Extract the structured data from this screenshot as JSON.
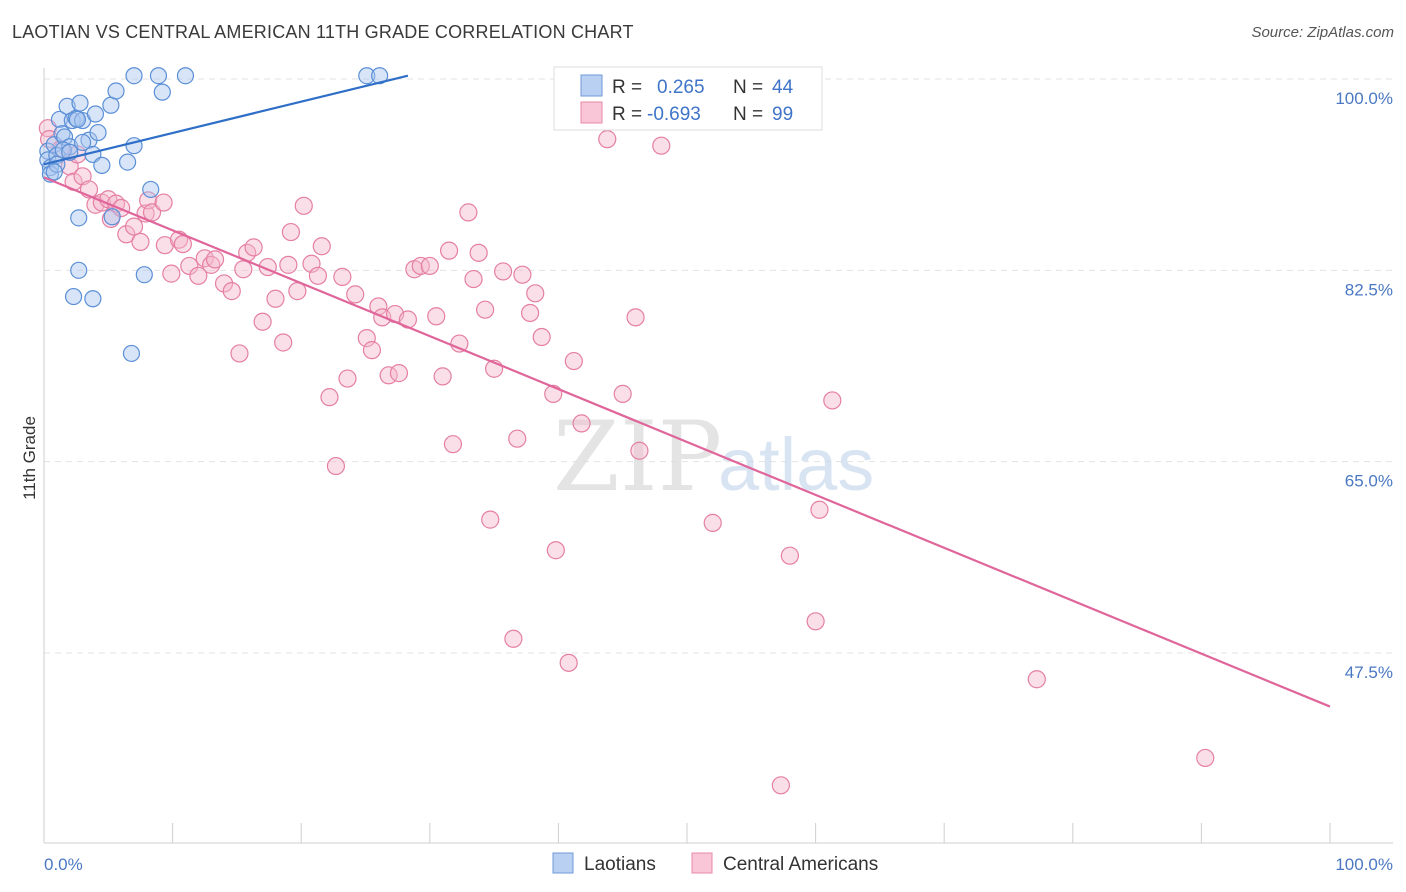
{
  "header": {
    "title": "LAOTIAN VS CENTRAL AMERICAN 11TH GRADE CORRELATION CHART",
    "source": "Source: ZipAtlas.com"
  },
  "watermark": {
    "zip": "ZIP",
    "atlas": "atlas"
  },
  "colors": {
    "blue": "#5b8fd6",
    "blue_fill": "#a9c6ef",
    "blue_line": "#2f6fc7",
    "pink": "#e57fa3",
    "pink_fill": "#f5b8cc",
    "pink_line": "#e0659a",
    "tick_text": "#4a78c2"
  },
  "legend": {
    "r_label": "R =",
    "n_label": "N =",
    "laotian": {
      "r": "0.265",
      "n": "44"
    },
    "central": {
      "r": "-0.693",
      "n": "99"
    }
  },
  "chart_data": {
    "type": "scatter",
    "title": "LAOTIAN VS CENTRAL AMERICAN 11TH GRADE CORRELATION CHART",
    "xlabel": "",
    "ylabel": "11th Grade",
    "xlim": [
      0,
      100
    ],
    "ylim": [
      30,
      101
    ],
    "x_tick_labels": [
      "0.0%",
      "100.0%"
    ],
    "y_ticks": [
      {
        "value": 100.0,
        "label": "100.0%"
      },
      {
        "value": 82.5,
        "label": "82.5%"
      },
      {
        "value": 65.0,
        "label": "65.0%"
      },
      {
        "value": 47.5,
        "label": "47.5%"
      }
    ],
    "series": [
      {
        "name": "Laotians",
        "color": "blue",
        "points": [
          [
            0.3,
            93.4
          ],
          [
            0.3,
            92.6
          ],
          [
            0.5,
            91.9
          ],
          [
            0.5,
            91.3
          ],
          [
            0.8,
            94.0
          ],
          [
            1.0,
            93.0
          ],
          [
            1.2,
            96.3
          ],
          [
            1.4,
            95.0
          ],
          [
            1.6,
            94.7
          ],
          [
            1.8,
            97.5
          ],
          [
            2.0,
            93.8
          ],
          [
            2.2,
            96.2
          ],
          [
            2.5,
            96.4
          ],
          [
            2.8,
            97.8
          ],
          [
            3.0,
            96.2
          ],
          [
            3.5,
            94.4
          ],
          [
            3.8,
            93.1
          ],
          [
            4.0,
            96.8
          ],
          [
            4.2,
            95.1
          ],
          [
            5.2,
            97.6
          ],
          [
            5.6,
            98.9
          ],
          [
            6.5,
            92.4
          ],
          [
            4.5,
            92.1
          ],
          [
            2.7,
            87.3
          ],
          [
            5.3,
            87.4
          ],
          [
            8.3,
            89.9
          ],
          [
            7.0,
            93.9
          ],
          [
            7.0,
            100.3
          ],
          [
            8.9,
            100.3
          ],
          [
            9.2,
            98.8
          ],
          [
            11.0,
            100.3
          ],
          [
            25.1,
            100.3
          ],
          [
            26.1,
            100.3
          ],
          [
            2.7,
            82.5
          ],
          [
            7.8,
            82.1
          ],
          [
            2.3,
            80.1
          ],
          [
            3.8,
            79.9
          ],
          [
            6.8,
            74.9
          ],
          [
            1.5,
            93.5
          ],
          [
            1.0,
            92.2
          ],
          [
            2.0,
            93.3
          ],
          [
            2.6,
            96.3
          ],
          [
            0.8,
            91.5
          ],
          [
            3.0,
            94.2
          ]
        ],
        "trend": {
          "x": [
            0.0,
            28.3
          ],
          "y": [
            92.2,
            100.3
          ]
        }
      },
      {
        "name": "Central Americans",
        "color": "pink",
        "points": [
          [
            0.3,
            95.5
          ],
          [
            0.4,
            94.5
          ],
          [
            1.3,
            93.6
          ],
          [
            2.0,
            92.0
          ],
          [
            2.3,
            90.6
          ],
          [
            2.6,
            93.1
          ],
          [
            3.0,
            91.1
          ],
          [
            3.5,
            89.9
          ],
          [
            4.0,
            88.5
          ],
          [
            4.5,
            88.7
          ],
          [
            5.0,
            89.0
          ],
          [
            5.2,
            87.2
          ],
          [
            5.6,
            88.6
          ],
          [
            6.0,
            88.2
          ],
          [
            6.4,
            85.8
          ],
          [
            7.0,
            86.5
          ],
          [
            7.5,
            85.1
          ],
          [
            7.9,
            87.7
          ],
          [
            8.1,
            88.9
          ],
          [
            8.4,
            87.8
          ],
          [
            9.3,
            88.7
          ],
          [
            9.4,
            84.8
          ],
          [
            9.9,
            82.2
          ],
          [
            10.5,
            85.3
          ],
          [
            10.8,
            84.9
          ],
          [
            11.3,
            82.9
          ],
          [
            12.0,
            82.0
          ],
          [
            12.5,
            83.6
          ],
          [
            13.0,
            83.0
          ],
          [
            13.3,
            83.5
          ],
          [
            14.0,
            81.3
          ],
          [
            14.6,
            80.6
          ],
          [
            15.2,
            74.9
          ],
          [
            15.5,
            82.6
          ],
          [
            15.8,
            84.1
          ],
          [
            16.3,
            84.6
          ],
          [
            17.0,
            77.8
          ],
          [
            17.4,
            82.8
          ],
          [
            18.0,
            79.9
          ],
          [
            18.6,
            75.9
          ],
          [
            19.0,
            83.0
          ],
          [
            19.2,
            86.0
          ],
          [
            19.7,
            80.6
          ],
          [
            20.2,
            88.4
          ],
          [
            20.8,
            83.1
          ],
          [
            21.3,
            82.0
          ],
          [
            21.6,
            84.7
          ],
          [
            22.2,
            70.9
          ],
          [
            22.7,
            64.6
          ],
          [
            23.2,
            81.9
          ],
          [
            23.6,
            72.6
          ],
          [
            24.2,
            80.3
          ],
          [
            25.1,
            76.3
          ],
          [
            25.5,
            75.2
          ],
          [
            26.0,
            79.2
          ],
          [
            26.3,
            78.2
          ],
          [
            26.8,
            72.9
          ],
          [
            27.3,
            78.5
          ],
          [
            27.6,
            73.1
          ],
          [
            28.3,
            78.0
          ],
          [
            28.8,
            82.6
          ],
          [
            29.3,
            82.9
          ],
          [
            30.0,
            82.9
          ],
          [
            30.5,
            78.3
          ],
          [
            31.0,
            72.8
          ],
          [
            31.5,
            84.3
          ],
          [
            31.8,
            66.6
          ],
          [
            32.3,
            75.8
          ],
          [
            33.0,
            87.8
          ],
          [
            33.4,
            81.7
          ],
          [
            33.8,
            84.1
          ],
          [
            34.3,
            78.9
          ],
          [
            34.7,
            59.7
          ],
          [
            35.0,
            73.5
          ],
          [
            35.7,
            82.4
          ],
          [
            36.5,
            48.8
          ],
          [
            36.8,
            67.1
          ],
          [
            37.2,
            82.1
          ],
          [
            37.8,
            78.6
          ],
          [
            38.2,
            80.4
          ],
          [
            38.7,
            76.4
          ],
          [
            39.6,
            71.2
          ],
          [
            39.8,
            56.9
          ],
          [
            40.8,
            46.6
          ],
          [
            41.2,
            74.2
          ],
          [
            41.8,
            68.5
          ],
          [
            43.8,
            94.5
          ],
          [
            45.0,
            71.2
          ],
          [
            46.3,
            66.0
          ],
          [
            46.0,
            78.2
          ],
          [
            48.0,
            93.9
          ],
          [
            52.0,
            59.4
          ],
          [
            57.3,
            35.4
          ],
          [
            58.0,
            56.4
          ],
          [
            60.0,
            50.4
          ],
          [
            60.3,
            60.6
          ],
          [
            61.3,
            70.6
          ],
          [
            77.2,
            45.1
          ],
          [
            90.3,
            37.9
          ]
        ],
        "trend": {
          "x": [
            0.0,
            100.0
          ],
          "y": [
            91.0,
            42.6
          ]
        }
      }
    ]
  },
  "bottom_legend": [
    "Laotians",
    "Central Americans"
  ]
}
